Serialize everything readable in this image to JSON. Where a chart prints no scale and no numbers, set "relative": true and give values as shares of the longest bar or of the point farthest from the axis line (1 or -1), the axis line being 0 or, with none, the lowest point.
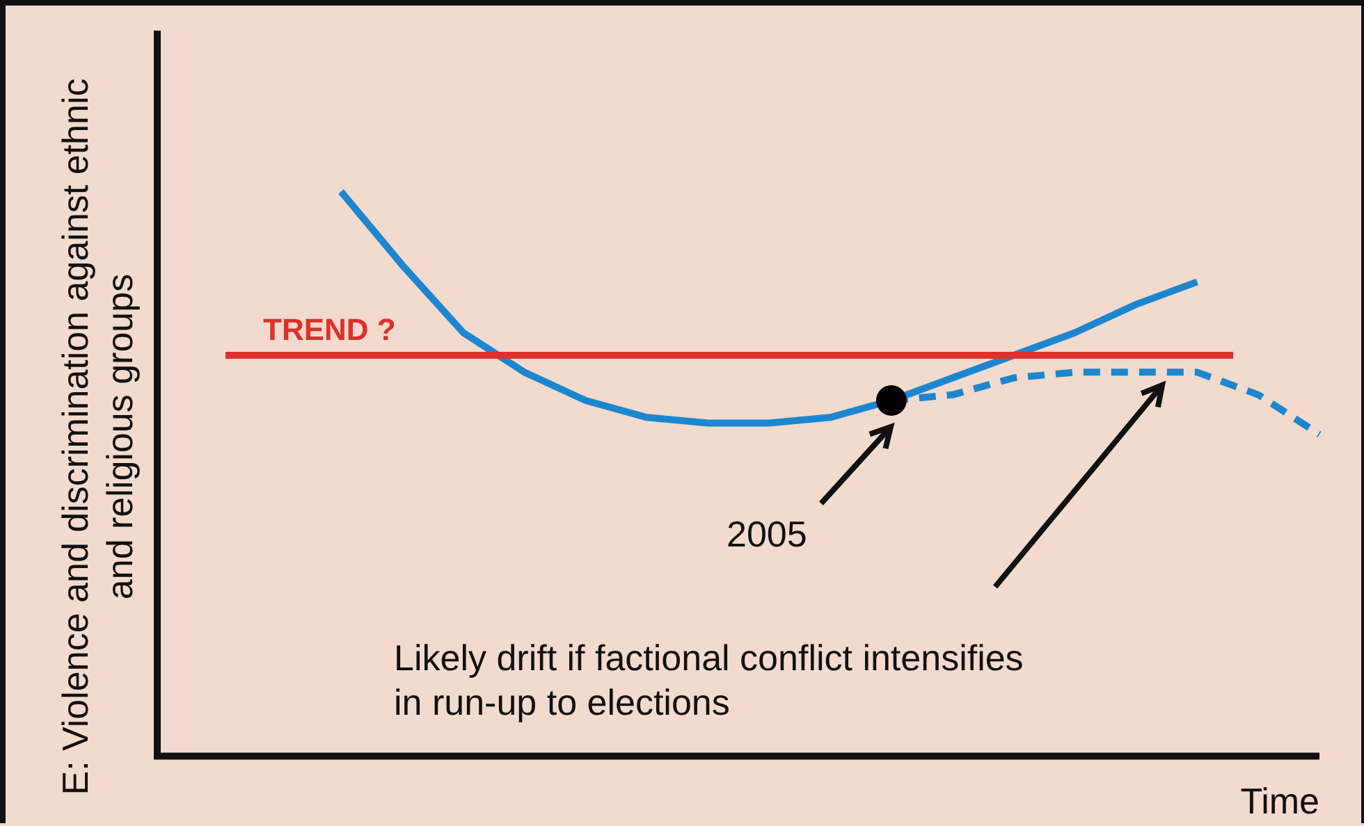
{
  "chart_data": {
    "type": "line",
    "relative": true,
    "ylabel": "E: Violence and discrimination against ethnic and religious groups",
    "xlabel": "Time",
    "categories": [
      null,
      null,
      null,
      null,
      null,
      null,
      null,
      null,
      null,
      null,
      null,
      null,
      null,
      null,
      null,
      null,
      null
    ],
    "series": [
      {
        "color": "#1b87d0",
        "line_style": "solid",
        "marker": "none",
        "values": [
          1.0,
          0.87,
          0.75,
          0.68,
          0.63,
          0.6,
          0.59,
          0.59,
          0.6,
          0.63,
          0.67,
          0.71,
          0.75,
          0.8,
          0.84,
          null,
          null
        ]
      },
      {
        "color": "#1b87d0",
        "line_style": "dashed",
        "marker": "none",
        "values": [
          null,
          null,
          null,
          null,
          null,
          null,
          null,
          null,
          null,
          0.63,
          0.64,
          0.67,
          0.68,
          0.68,
          0.68,
          0.64,
          0.57
        ]
      }
    ],
    "ref_lines": [
      {
        "axis": "y",
        "value": 0.71,
        "label": "TREND ?",
        "color": "#e0302a"
      }
    ],
    "annotations": [
      "2005",
      "Likely drift if factional conflict intensifies in run-up to elections"
    ],
    "grid": false,
    "legend": false
  }
}
